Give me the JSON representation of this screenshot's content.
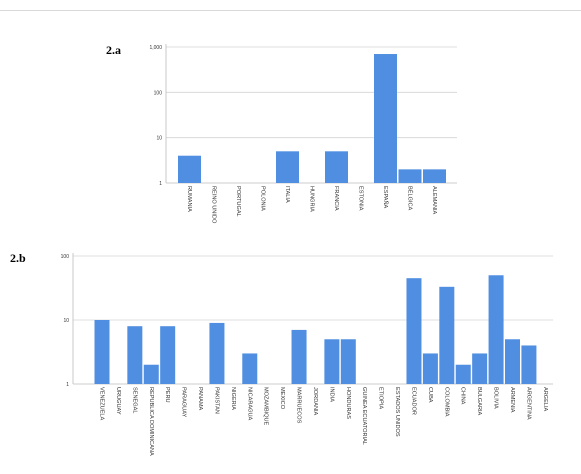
{
  "chart_data": [
    {
      "type": "bar",
      "panel_label": "2.a",
      "scale": "log",
      "ylim": [
        1,
        1000
      ],
      "yticks": [
        "1",
        "10",
        "100",
        "1,000"
      ],
      "grid": true,
      "bar_color": "#4f8ee0",
      "categories": [
        "RUMANIA",
        "REINO UNIDO",
        "PORTUGAL",
        "POLONIA",
        "ITALIA",
        "HUNGRIA",
        "FRANCIA",
        "ESTONIA",
        "ESPAÑA",
        "BÉLGICA",
        "ALEMANIA"
      ],
      "values": [
        4,
        1,
        1,
        1,
        5,
        1,
        5,
        1,
        700,
        2,
        2
      ]
    },
    {
      "type": "bar",
      "panel_label": "2.b",
      "scale": "log",
      "ylim": [
        1,
        100
      ],
      "yticks": [
        "1",
        "10",
        "100"
      ],
      "grid": true,
      "bar_color": "#4f8ee0",
      "categories": [
        "VENEZUELA",
        "URUGUAY",
        "SENEGAL",
        "REPUBLICA DOMINICANA",
        "PERU",
        "PARAGUAY",
        "PANAMA",
        "PAKISTAN",
        "NIGERIA",
        "NICARAGUA",
        "MOZAMBIQUE",
        "MEXICO",
        "MARRUECOS",
        "JORDANIA",
        "INDIA",
        "HONDURAS",
        "GUINEA ECUATORIAL",
        "ETIOPIA",
        "ESTADOS UNIDOS",
        "ECUADOR",
        "CUBA",
        "COLOMBIA",
        "CHINA",
        "BULGARIA",
        "BOLIVIA",
        "ARMENIA",
        "ARGENTINA",
        "ARGELIA"
      ],
      "values": [
        10,
        1,
        8,
        2,
        8,
        1,
        1,
        9,
        1,
        3,
        1,
        1,
        7,
        1,
        5,
        5,
        1,
        1,
        1,
        45,
        3,
        33,
        2,
        3,
        50,
        5,
        4,
        1
      ]
    }
  ]
}
